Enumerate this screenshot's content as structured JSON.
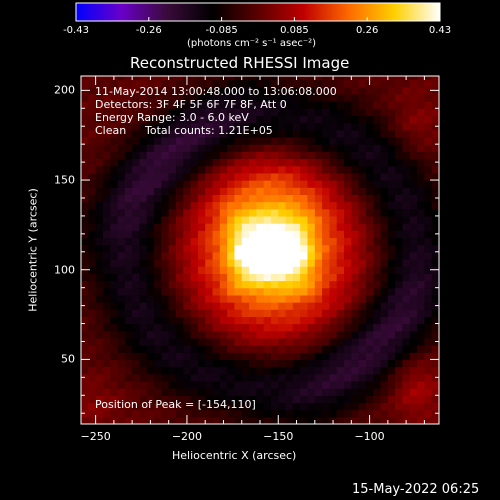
{
  "colorbar": {
    "ticks": [
      "-0.43",
      "-0.26",
      "-0.085",
      "0.085",
      "0.26",
      "0.43"
    ],
    "units": "(photons cm⁻² s⁻¹ asec⁻²)",
    "colors": [
      "#0000ff",
      "#6a00c8",
      "#3a0a3a",
      "#000000",
      "#5a0000",
      "#c00000",
      "#ff6a00",
      "#ffd000",
      "#ffffff"
    ]
  },
  "header": {
    "title": "Reconstructed RHESSI Image",
    "time_range": "11-May-2014 13:00:48.000 to 13:06:08.000",
    "detectors": "Detectors: 3F 4F 5F 6F 7F 8F, Att 0",
    "energy": "Energy Range: 3.0 - 6.0 keV",
    "clean_label": "Clean",
    "total_counts": "Total counts: 1.21E+05"
  },
  "annotation": {
    "peak": "Position of Peak = [-154,110]"
  },
  "footer": {
    "timestamp": "15-May-2022 06:25"
  },
  "chart_data": {
    "type": "heatmap",
    "title": "Reconstructed RHESSI Image",
    "xlabel": "Heliocentric X (arcsec)",
    "ylabel": "Heliocentric Y (arcsec)",
    "xlim": [
      -258,
      -62
    ],
    "ylim": [
      14,
      208
    ],
    "x_ticks": [
      -250,
      -200,
      -150,
      -100
    ],
    "x_tick_labels": [
      "−250",
      "−200",
      "−150",
      "−100"
    ],
    "y_ticks": [
      50,
      100,
      150,
      200
    ],
    "y_tick_labels": [
      "50",
      "100",
      "150",
      "200"
    ],
    "value_range": [
      -0.43,
      0.43
    ],
    "peak": {
      "x": -154,
      "y": 110
    },
    "sources": [
      {
        "x": -154,
        "y": 110,
        "amplitude": 0.46,
        "sigma_x": 10,
        "sigma_y": 6
      },
      {
        "x": -155,
        "y": 118,
        "amplitude": 0.22,
        "sigma_x": 25,
        "sigma_y": 30
      },
      {
        "x": -150,
        "y": 105,
        "amplitude": 0.12,
        "sigma_x": 38,
        "sigma_y": 38
      }
    ]
  }
}
